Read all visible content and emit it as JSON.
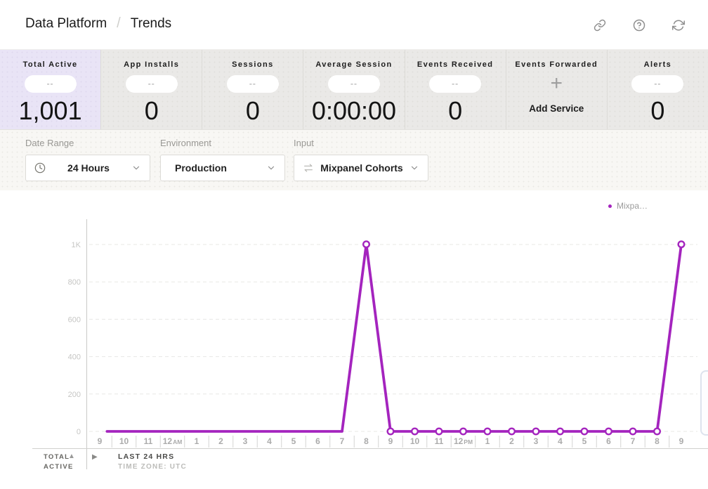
{
  "header": {
    "breadcrumb_section": "Data Platform",
    "breadcrumb_separator": "/",
    "breadcrumb_page": "Trends",
    "icons": [
      "link-icon",
      "help-icon",
      "refresh-icon"
    ]
  },
  "metrics": {
    "cards": [
      {
        "label": "Total Active",
        "pill": "--",
        "value": "1,001",
        "selected": true
      },
      {
        "label": "App Installs",
        "pill": "--",
        "value": "0"
      },
      {
        "label": "Sessions",
        "pill": "--",
        "value": "0"
      },
      {
        "label": "Average Session",
        "pill": "--",
        "value": "0:00:00"
      },
      {
        "label": "Events Received",
        "pill": "--",
        "value": "0"
      },
      {
        "label": "Events Forwarded",
        "icon": "plus-icon",
        "action_label": "Add Service"
      },
      {
        "label": "Alerts",
        "pill": "--",
        "value": "0"
      }
    ]
  },
  "filters": [
    {
      "label": "Date Range",
      "value": "24 Hours",
      "icon": "clock-icon"
    },
    {
      "label": "Environment",
      "value": "Production",
      "icon": null
    },
    {
      "label": "Input",
      "value": "Mixpanel Cohorts",
      "icon": "swap-arrows-icon"
    }
  ],
  "chart_data": {
    "type": "line",
    "title": "",
    "xlabel": "",
    "ylabel": "",
    "ylim": [
      0,
      1000
    ],
    "grid": "dashed-horizontal",
    "legend_position": "top-right",
    "legend": [
      {
        "label": "Mixpa…",
        "color": "#a424be"
      }
    ],
    "y_ticks": [
      {
        "v": 0,
        "label": "0"
      },
      {
        "v": 200,
        "label": "200"
      },
      {
        "v": 400,
        "label": "400"
      },
      {
        "v": 600,
        "label": "600"
      },
      {
        "v": 800,
        "label": "800"
      },
      {
        "v": 1000,
        "label": "1K"
      }
    ],
    "x_labels": [
      {
        "label": "9"
      },
      {
        "label": "10"
      },
      {
        "label": "11"
      },
      {
        "label": "12",
        "sub": "AM"
      },
      {
        "label": "1"
      },
      {
        "label": "2"
      },
      {
        "label": "3"
      },
      {
        "label": "4"
      },
      {
        "label": "5"
      },
      {
        "label": "6"
      },
      {
        "label": "7"
      },
      {
        "label": "8"
      },
      {
        "label": "9"
      },
      {
        "label": "10"
      },
      {
        "label": "11"
      },
      {
        "label": "12",
        "sub": "PM"
      },
      {
        "label": "1"
      },
      {
        "label": "2"
      },
      {
        "label": "3"
      },
      {
        "label": "4"
      },
      {
        "label": "5"
      },
      {
        "label": "6"
      },
      {
        "label": "7"
      },
      {
        "label": "8"
      },
      {
        "label": "9"
      }
    ],
    "series": [
      {
        "name": "Mixpa…",
        "color": "#a424be",
        "points": [
          {
            "t": 0.3,
            "v": 0,
            "marker": false
          },
          {
            "t": 10,
            "v": 0,
            "marker": false
          },
          {
            "t": 11,
            "v": 1001,
            "marker": true
          },
          {
            "t": 12,
            "v": 0,
            "marker": true
          },
          {
            "t": 13,
            "v": 0,
            "marker": true
          },
          {
            "t": 14,
            "v": 0,
            "marker": true
          },
          {
            "t": 15,
            "v": 0,
            "marker": true
          },
          {
            "t": 16,
            "v": 0,
            "marker": true
          },
          {
            "t": 17,
            "v": 0,
            "marker": true
          },
          {
            "t": 18,
            "v": 0,
            "marker": true
          },
          {
            "t": 19,
            "v": 0,
            "marker": true
          },
          {
            "t": 20,
            "v": 0,
            "marker": true
          },
          {
            "t": 21,
            "v": 0,
            "marker": true
          },
          {
            "t": 22,
            "v": 0,
            "marker": true
          },
          {
            "t": 23,
            "v": 0,
            "marker": true
          },
          {
            "t": 24,
            "v": 1001,
            "marker": true
          }
        ]
      }
    ],
    "footer": {
      "metric_line1": "TOTAL",
      "metric_line2": "ACTIVE",
      "sort_icon": "triangle-up-icon",
      "expand_icon": "triangle-right-icon",
      "range_label": "LAST 24 HRS",
      "timezone_label": "TIME ZONE: UTC"
    }
  }
}
